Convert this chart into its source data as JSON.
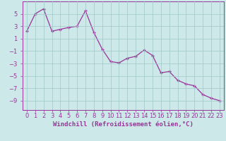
{
  "x": [
    0,
    1,
    2,
    3,
    4,
    5,
    6,
    7,
    8,
    9,
    10,
    11,
    12,
    13,
    14,
    15,
    16,
    17,
    18,
    19,
    20,
    21,
    22,
    23
  ],
  "y": [
    2.2,
    5.0,
    5.8,
    2.2,
    2.5,
    2.8,
    3.0,
    5.5,
    2.0,
    -0.7,
    -2.7,
    -2.9,
    -2.15,
    -1.85,
    -0.85,
    -1.7,
    -4.5,
    -4.3,
    -5.7,
    -6.3,
    -6.6,
    -8.0,
    -8.6,
    -9.0
  ],
  "line_color": "#993399",
  "marker": "+",
  "bg_color": "#cce8e8",
  "grid_color": "#a0c8c8",
  "xlabel": "Windchill (Refroidissement éolien,°C)",
  "yticks": [
    5,
    3,
    1,
    -1,
    -3,
    -5,
    -7,
    -9
  ],
  "ylim": [
    -10.5,
    7.0
  ],
  "xlim": [
    -0.5,
    23.5
  ],
  "xtick_labels": [
    "0",
    "1",
    "2",
    "3",
    "4",
    "5",
    "6",
    "7",
    "8",
    "9",
    "10",
    "11",
    "12",
    "13",
    "14",
    "15",
    "16",
    "17",
    "18",
    "19",
    "20",
    "21",
    "22",
    "23"
  ],
  "font_color": "#993399",
  "xlabel_fontsize": 6.5,
  "tick_fontsize": 6.0,
  "linewidth": 0.9,
  "markersize": 3.5,
  "markeredgewidth": 1.0
}
